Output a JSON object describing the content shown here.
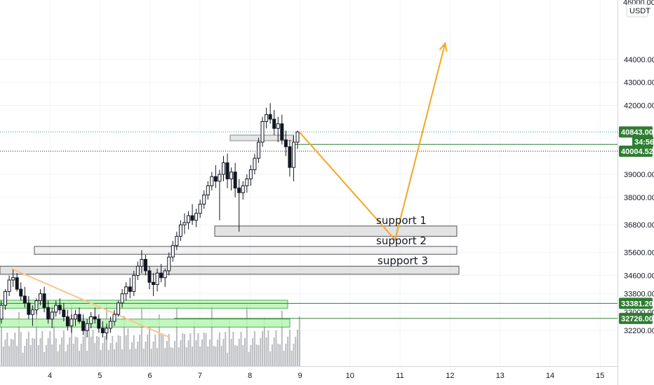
{
  "colors": {
    "background": "#ffffff",
    "grid": "#f0f3fa",
    "candle": "#131722",
    "volume": "#8d8f96",
    "green_line": "#2e7d32",
    "green_zone": "#b9f6b4",
    "green_zone_border": "#4caf50",
    "gray_zone": "#d9d9d9",
    "gray_zone_border": "#555555",
    "arrow": "#f5a623",
    "trend": "#ffc58a",
    "tag_green": "#2e7d32"
  },
  "chart_data": {
    "type": "candlestick",
    "title": "",
    "xlabel": "",
    "ylabel": "",
    "currency": "USDT",
    "x_ticks": [
      "4",
      "5",
      "6",
      "7",
      "8",
      "9",
      "10",
      "11",
      "12",
      "13",
      "14",
      "15"
    ],
    "y_ticks": [
      "44000.00",
      "43000.00",
      "42000.00",
      "39000.00",
      "38000.00",
      "36800.00",
      "35600.00",
      "34600.00",
      "33800.00",
      "33000.00",
      "32200.00"
    ],
    "y_top_label": "46000.00",
    "ylim": [
      31800,
      46100
    ],
    "grid": true,
    "price_tags": [
      {
        "label": "40843.00",
        "value": 40843
      },
      {
        "label": "34:56",
        "value": 40420
      },
      {
        "label": "40004.52",
        "value": 40004.52
      },
      {
        "label": "33381.20",
        "value": 33381.2
      },
      {
        "label": "32726.00",
        "value": 32726
      }
    ],
    "candles_ohlc": [
      [
        32700,
        33500,
        32500,
        33300
      ],
      [
        33300,
        34000,
        33100,
        33900
      ],
      [
        33900,
        34600,
        33700,
        34400
      ],
      [
        34400,
        34850,
        34100,
        34500
      ],
      [
        34500,
        34700,
        33900,
        34000
      ],
      [
        34000,
        34300,
        33500,
        33700
      ],
      [
        33700,
        34100,
        33200,
        33400
      ],
      [
        33400,
        33700,
        32700,
        32900
      ],
      [
        32900,
        33300,
        32400,
        33100
      ],
      [
        33100,
        33600,
        32900,
        33500
      ],
      [
        33500,
        34000,
        33300,
        33800
      ],
      [
        33800,
        34100,
        33000,
        33200
      ],
      [
        33200,
        33500,
        32500,
        32700
      ],
      [
        32700,
        33200,
        32300,
        33000
      ],
      [
        33000,
        33500,
        32800,
        33300
      ],
      [
        33300,
        33600,
        32900,
        33100
      ],
      [
        33100,
        33400,
        32600,
        32800
      ],
      [
        32800,
        33100,
        32200,
        32400
      ],
      [
        32400,
        32900,
        32100,
        32700
      ],
      [
        32700,
        33100,
        32400,
        32900
      ],
      [
        32900,
        33200,
        32500,
        32600
      ],
      [
        32600,
        32900,
        32000,
        32200
      ],
      [
        32200,
        32700,
        31900,
        32500
      ],
      [
        32500,
        33000,
        32300,
        32800
      ],
      [
        32800,
        33200,
        32500,
        32700
      ],
      [
        32700,
        32900,
        32100,
        32300
      ],
      [
        32300,
        32600,
        31900,
        32100
      ],
      [
        32100,
        32500,
        31800,
        32300
      ],
      [
        32300,
        32800,
        32100,
        32600
      ],
      [
        32600,
        33100,
        32400,
        32900
      ],
      [
        32900,
        33500,
        32800,
        33400
      ],
      [
        33400,
        34000,
        33200,
        33800
      ],
      [
        33800,
        34300,
        33500,
        34100
      ],
      [
        34100,
        34500,
        33600,
        33900
      ],
      [
        33900,
        34800,
        33700,
        34600
      ],
      [
        34600,
        35200,
        34400,
        35000
      ],
      [
        35000,
        35700,
        34700,
        35300
      ],
      [
        35300,
        35500,
        34600,
        34800
      ],
      [
        34800,
        35000,
        34000,
        34300
      ],
      [
        34300,
        34700,
        33700,
        34200
      ],
      [
        34200,
        34900,
        33900,
        34700
      ],
      [
        34700,
        35100,
        34300,
        34500
      ],
      [
        34500,
        34900,
        34100,
        34800
      ],
      [
        34800,
        35600,
        34600,
        35400
      ],
      [
        35400,
        36100,
        35200,
        35900
      ],
      [
        35900,
        36500,
        35700,
        36300
      ],
      [
        36300,
        37000,
        36100,
        36800
      ],
      [
        36800,
        37300,
        36400,
        36900
      ],
      [
        36900,
        37400,
        36600,
        37200
      ],
      [
        37200,
        37700,
        36800,
        37000
      ],
      [
        37000,
        37500,
        36700,
        37300
      ],
      [
        37300,
        37900,
        37100,
        37700
      ],
      [
        37700,
        38300,
        37500,
        38100
      ],
      [
        38100,
        38700,
        37900,
        38500
      ],
      [
        38500,
        39100,
        38300,
        38900
      ],
      [
        38900,
        39400,
        38400,
        38700
      ],
      [
        38700,
        39200,
        37000,
        39000
      ],
      [
        39000,
        39800,
        38700,
        39500
      ],
      [
        39500,
        39900,
        38400,
        38800
      ],
      [
        38800,
        39300,
        38300,
        39100
      ],
      [
        39100,
        39500,
        38000,
        38400
      ],
      [
        38400,
        38800,
        36500,
        38200
      ],
      [
        38200,
        38700,
        37900,
        38500
      ],
      [
        38500,
        39000,
        38200,
        38800
      ],
      [
        38800,
        39400,
        38500,
        39200
      ],
      [
        39200,
        39900,
        39000,
        39700
      ],
      [
        39700,
        40600,
        39500,
        40400
      ],
      [
        40400,
        41500,
        40200,
        41300
      ],
      [
        41300,
        41900,
        41000,
        41600
      ],
      [
        41600,
        42100,
        41200,
        41400
      ],
      [
        41400,
        41800,
        40700,
        41000
      ],
      [
        41000,
        41500,
        40400,
        41200
      ],
      [
        41200,
        41600,
        40300,
        40500
      ],
      [
        40500,
        40900,
        39800,
        40200
      ],
      [
        40200,
        40500,
        38900,
        39300
      ],
      [
        39300,
        40700,
        38700,
        40400
      ],
      [
        40400,
        40900,
        40100,
        40843
      ]
    ],
    "zones": [
      {
        "name": "support 1",
        "low": 36300,
        "high": 36750
      },
      {
        "name": "support 2",
        "low": 35520,
        "high": 35860
      },
      {
        "name": "support 3",
        "low": 34650,
        "high": 35000
      },
      {
        "name": "",
        "low": 33170,
        "high": 33520
      },
      {
        "name": "",
        "low": 32350,
        "high": 32700
      }
    ],
    "horizontal_lines": [
      40304,
      33381.2,
      32726
    ],
    "projection_path": [
      [
        9.0,
        40843
      ],
      [
        10.9,
        36150
      ],
      [
        11.9,
        44700
      ]
    ],
    "annotations": [
      "support 1",
      "support 2",
      "support 3"
    ]
  }
}
